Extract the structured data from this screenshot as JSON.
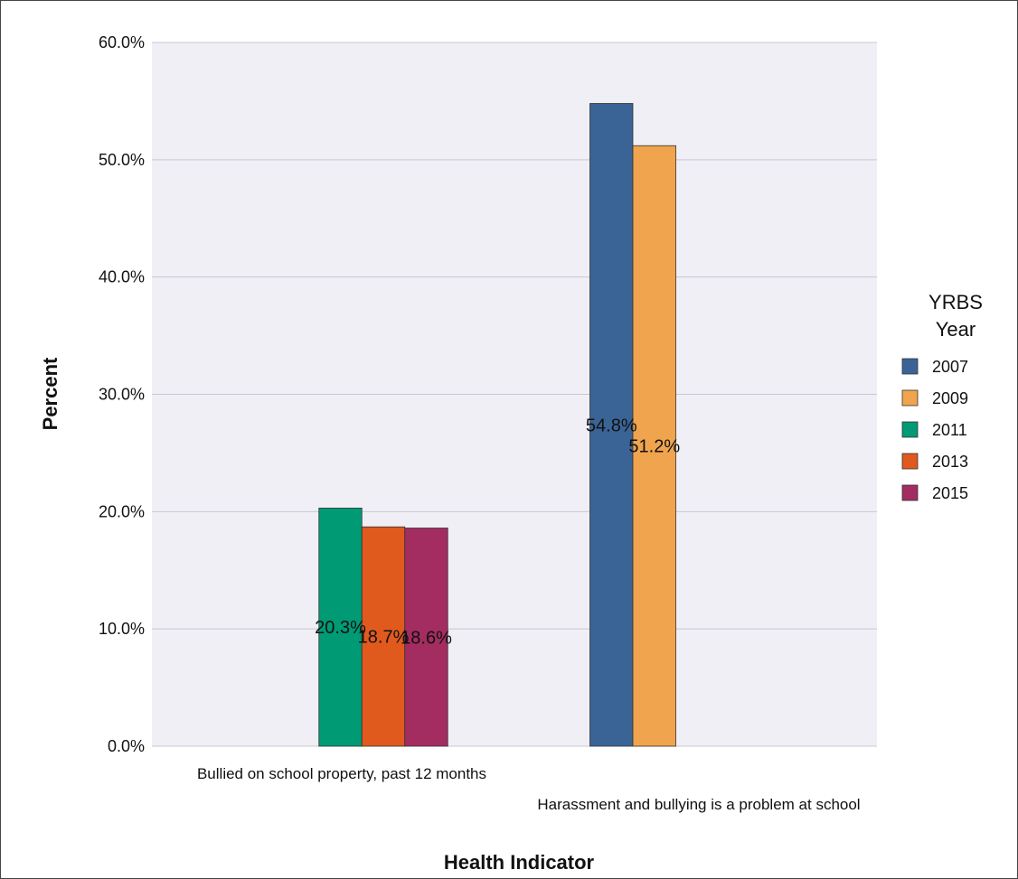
{
  "chart_data": {
    "type": "bar",
    "title": "",
    "xlabel": "Health Indicator",
    "ylabel": "Percent",
    "ylim": [
      0,
      60
    ],
    "yticks": [
      "0.0%",
      "10.0%",
      "20.0%",
      "30.0%",
      "40.0%",
      "50.0%",
      "60.0%"
    ],
    "grid": true,
    "legend": {
      "title_lines": [
        "YRBS",
        "Year"
      ],
      "placement": "right",
      "entries": [
        "2007",
        "2009",
        "2011",
        "2013",
        "2015"
      ]
    },
    "categories": [
      "Bullied on school property, past 12 months",
      "Harassment and bullying is a problem at school"
    ],
    "series": [
      {
        "name": "2007",
        "color": "#3a6496",
        "values": [
          null,
          54.8
        ],
        "labels": [
          "",
          "54.8%"
        ]
      },
      {
        "name": "2009",
        "color": "#f0a44e",
        "values": [
          null,
          51.2
        ],
        "labels": [
          "",
          "51.2%"
        ]
      },
      {
        "name": "2011",
        "color": "#009a74",
        "values": [
          20.3,
          null
        ],
        "labels": [
          "20.3%",
          ""
        ]
      },
      {
        "name": "2013",
        "color": "#e05a1e",
        "values": [
          18.7,
          null
        ],
        "labels": [
          "18.7%",
          ""
        ]
      },
      {
        "name": "2015",
        "color": "#a32c60",
        "values": [
          18.6,
          null
        ],
        "labels": [
          "18.6%",
          ""
        ]
      }
    ]
  }
}
